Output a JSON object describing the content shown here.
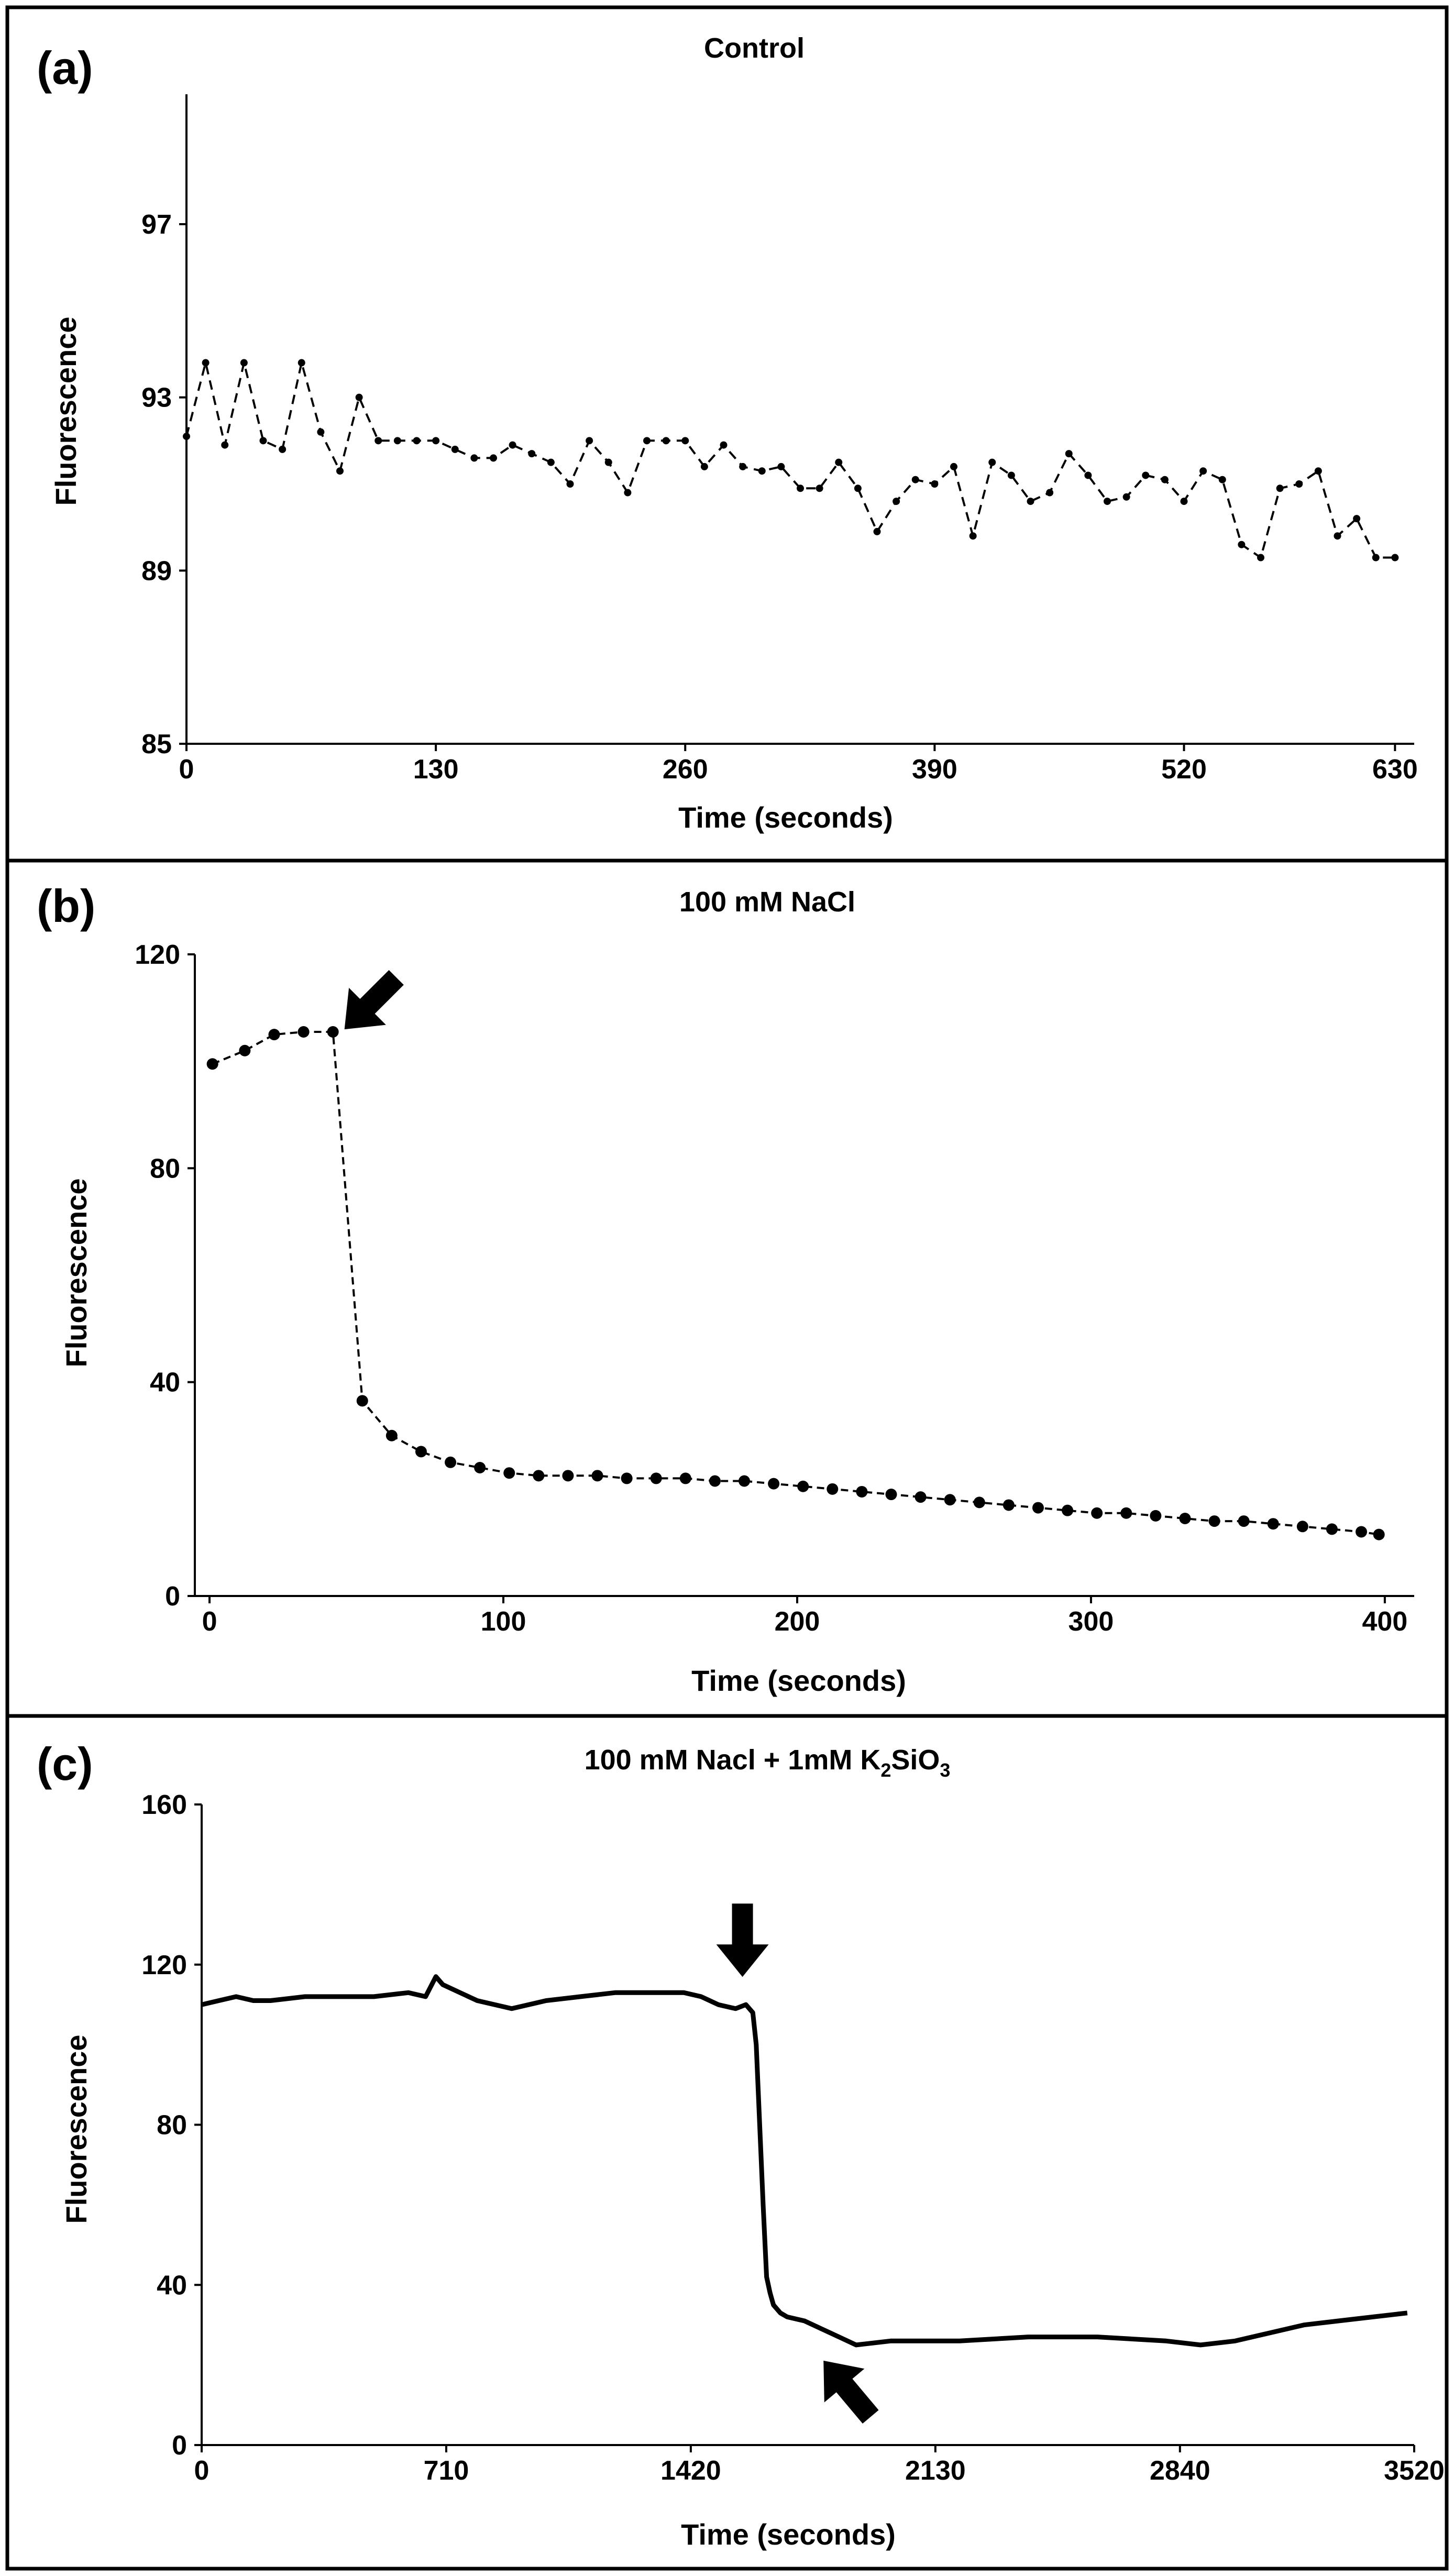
{
  "chart_data": [
    {
      "type": "line",
      "panel_label": "(a)",
      "title": "Control",
      "xlabel": "Time (seconds)",
      "ylabel": "Fluorescence",
      "xlim": [
        0,
        640
      ],
      "ylim": [
        85,
        100
      ],
      "x_ticks": [
        0,
        130,
        260,
        390,
        520,
        630
      ],
      "y_ticks": [
        85,
        89,
        93,
        97
      ],
      "line_style": "dashed",
      "markers": true,
      "series": [
        {
          "name": "Control",
          "x": [
            0,
            10,
            20,
            30,
            40,
            50,
            60,
            70,
            80,
            90,
            100,
            110,
            120,
            130,
            140,
            150,
            160,
            170,
            180,
            190,
            200,
            210,
            220,
            230,
            240,
            250,
            260,
            270,
            280,
            290,
            300,
            310,
            320,
            330,
            340,
            350,
            360,
            370,
            380,
            390,
            400,
            410,
            420,
            430,
            440,
            450,
            460,
            470,
            480,
            490,
            500,
            510,
            520,
            530,
            540,
            550,
            560,
            570,
            580,
            590,
            600,
            610,
            620,
            630
          ],
          "y": [
            92.1,
            93.8,
            91.9,
            93.8,
            92.0,
            91.8,
            93.8,
            92.2,
            91.3,
            93.0,
            92.0,
            92.0,
            92.0,
            92.0,
            91.8,
            91.6,
            91.6,
            91.9,
            91.7,
            91.5,
            91.0,
            92.0,
            91.5,
            90.8,
            92.0,
            92.0,
            92.0,
            91.4,
            91.9,
            91.4,
            91.3,
            91.4,
            90.9,
            90.9,
            91.5,
            90.9,
            89.9,
            90.6,
            91.1,
            91.0,
            91.4,
            89.8,
            91.5,
            91.2,
            90.6,
            90.8,
            91.7,
            91.2,
            90.6,
            90.7,
            91.2,
            91.1,
            90.6,
            91.3,
            91.1,
            89.6,
            89.3,
            90.9,
            91.0,
            91.3,
            89.8,
            90.2,
            89.3,
            89.3
          ]
        }
      ]
    },
    {
      "type": "line",
      "panel_label": "(b)",
      "title": "100 mM NaCl",
      "xlabel": "Time (seconds)",
      "ylabel": "Fluorescence",
      "xlim": [
        -5,
        410
      ],
      "ylim": [
        0,
        120
      ],
      "x_ticks": [
        0,
        100,
        200,
        300,
        400
      ],
      "y_ticks": [
        0,
        40,
        80,
        120
      ],
      "line_style": "dashed",
      "markers": true,
      "annotations": [
        {
          "type": "arrow",
          "x": 42,
          "y": 105
        }
      ],
      "series": [
        {
          "name": "100 mM NaCl",
          "x": [
            1,
            12,
            22,
            32,
            42,
            52,
            62,
            72,
            82,
            92,
            102,
            112,
            122,
            132,
            142,
            152,
            162,
            172,
            182,
            192,
            202,
            212,
            222,
            232,
            242,
            252,
            262,
            272,
            282,
            292,
            302,
            312,
            322,
            332,
            342,
            352,
            362,
            372,
            382,
            392,
            398
          ],
          "y": [
            99.5,
            102,
            105,
            105.5,
            105.5,
            36.5,
            30,
            27,
            25,
            24,
            23,
            22.5,
            22.5,
            22.5,
            22,
            22,
            22,
            21.5,
            21.5,
            21,
            20.5,
            20,
            19.5,
            19,
            18.5,
            18,
            17.5,
            17,
            16.5,
            16,
            15.5,
            15.5,
            15,
            14.5,
            14,
            14,
            13.5,
            13,
            12.5,
            12,
            11.5
          ]
        }
      ]
    },
    {
      "type": "line",
      "panel_label": "(c)",
      "title": "100 mM Nacl +  1mM  K",
      "title_sub1": "2",
      "title_mid": "SiO",
      "title_sub2": "3",
      "xlabel": "Time (seconds)",
      "ylabel": "Fluorescence",
      "xlim": [
        0,
        3520
      ],
      "ylim": [
        0,
        160
      ],
      "x_ticks": [
        0,
        710,
        1420,
        2130,
        2840,
        3520
      ],
      "y_ticks": [
        0,
        40,
        80,
        120,
        160
      ],
      "line_style": "solid-dense",
      "markers": false,
      "annotations": [
        {
          "type": "arrow",
          "x": 1570,
          "y": 113
        },
        {
          "type": "arrow",
          "x": 1790,
          "y": 25
        }
      ],
      "series": [
        {
          "name": "100 mM Nacl + 1mM K2SiO3",
          "x": [
            0,
            50,
            100,
            150,
            200,
            300,
            400,
            500,
            600,
            650,
            680,
            700,
            750,
            800,
            900,
            1000,
            1100,
            1200,
            1300,
            1400,
            1450,
            1500,
            1550,
            1580,
            1600,
            1610,
            1620,
            1630,
            1640,
            1650,
            1660,
            1680,
            1700,
            1750,
            1800,
            1850,
            1900,
            2000,
            2100,
            2200,
            2400,
            2600,
            2800,
            2900,
            3000,
            3100,
            3200,
            3300,
            3400,
            3500
          ],
          "y": [
            110,
            111,
            112,
            111,
            111,
            112,
            112,
            112,
            113,
            112,
            117,
            115,
            113,
            111,
            109,
            111,
            112,
            113,
            113,
            113,
            112,
            110,
            109,
            110,
            108,
            100,
            80,
            60,
            42,
            38,
            35,
            33,
            32,
            31,
            29,
            27,
            25,
            26,
            26,
            26,
            27,
            27,
            26,
            25,
            26,
            28,
            30,
            31,
            32,
            33
          ]
        }
      ]
    }
  ]
}
